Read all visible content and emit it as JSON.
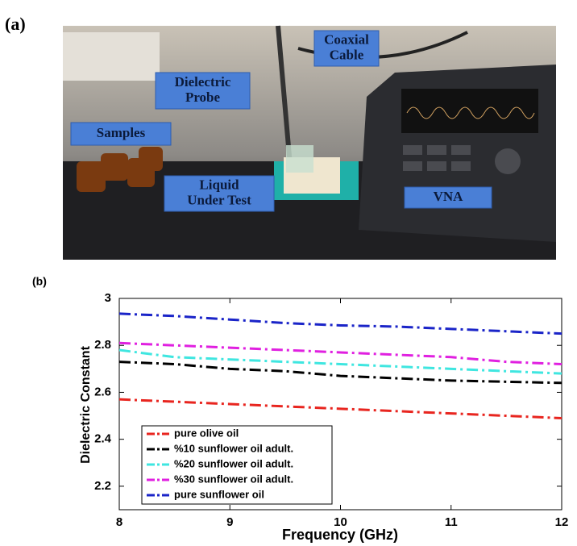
{
  "panel_a": {
    "label": "(a)",
    "callouts": [
      {
        "lines": [
          "Coaxial",
          "Cable"
        ]
      },
      {
        "lines": [
          "Dielectric",
          "Probe"
        ]
      },
      {
        "lines": [
          "Samples"
        ]
      },
      {
        "lines": [
          "Liquid",
          "Under Test"
        ]
      },
      {
        "lines": [
          "VNA"
        ]
      }
    ]
  },
  "chart_data": {
    "type": "line",
    "panel_label": "(b)",
    "x_label": "Frequency (GHz)",
    "y_label": "Dielectric Constant",
    "x": [
      8,
      8.5,
      9,
      9.5,
      10,
      10.5,
      11,
      11.5,
      12
    ],
    "xlim": [
      8,
      12
    ],
    "xticks": [
      8,
      9,
      10,
      11,
      12
    ],
    "ylim": [
      2.1,
      3
    ],
    "yticks": [
      2.2,
      2.4,
      2.6,
      2.8,
      3
    ],
    "legend": "lower left",
    "series": [
      {
        "name": "pure olive oil",
        "color": "#e8251f",
        "values": [
          2.57,
          2.56,
          2.55,
          2.54,
          2.53,
          2.52,
          2.51,
          2.5,
          2.49
        ]
      },
      {
        "name": "%10 sunflower oil adult.",
        "color": "#000000",
        "values": [
          2.73,
          2.72,
          2.7,
          2.69,
          2.67,
          2.66,
          2.65,
          2.645,
          2.64
        ]
      },
      {
        "name": "%20 sunflower oil adult.",
        "color": "#3fe6e0",
        "values": [
          2.78,
          2.75,
          2.74,
          2.73,
          2.72,
          2.71,
          2.7,
          2.69,
          2.68
        ]
      },
      {
        "name": "%30 sunflower oil adult.",
        "color": "#e020e0",
        "values": [
          2.81,
          2.8,
          2.79,
          2.78,
          2.77,
          2.76,
          2.75,
          2.73,
          2.72
        ]
      },
      {
        "name": "pure sunflower oil",
        "color": "#1a24c8",
        "values": [
          2.935,
          2.925,
          2.91,
          2.895,
          2.885,
          2.88,
          2.87,
          2.86,
          2.85
        ]
      }
    ]
  }
}
